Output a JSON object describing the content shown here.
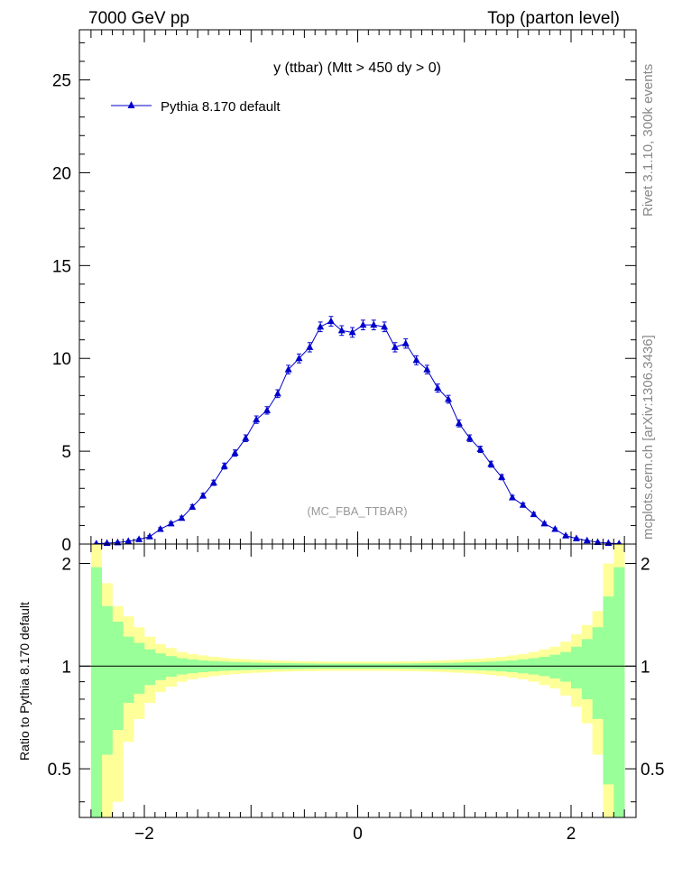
{
  "header": {
    "left": "7000 GeV pp",
    "right": "Top (parton level)"
  },
  "side_labels": {
    "rivet": "Rivet 3.1.10,  300k events",
    "source": "mcplots.cern.ch [arXiv:1306.3436]"
  },
  "colors": {
    "series": "#0000cc",
    "band_inner": "#99ff99",
    "band_outer": "#ffff99",
    "watermark": "#999999"
  },
  "chart_data": [
    {
      "type": "line",
      "title": "y (ttbar) (Mtt > 450 dy > 0)",
      "watermark": "(MC_FBA_TTBAR)",
      "xlim": [
        -2.55,
        2.62
      ],
      "ylim": [
        0,
        27.7
      ],
      "yticks": [
        0,
        5,
        10,
        15,
        20,
        25
      ],
      "ytick_labels": [
        "0",
        "5",
        "10",
        "15",
        "20",
        "25"
      ],
      "legend_position": "top-left",
      "series": [
        {
          "name": "Pythia 8.170 default",
          "marker": "triangle",
          "x": [
            -2.45,
            -2.35,
            -2.25,
            -2.15,
            -2.05,
            -1.95,
            -1.85,
            -1.75,
            -1.65,
            -1.55,
            -1.45,
            -1.35,
            -1.25,
            -1.15,
            -1.05,
            -0.95,
            -0.85,
            -0.75,
            -0.65,
            -0.55,
            -0.45,
            -0.35,
            -0.25,
            -0.15,
            -0.05,
            0.05,
            0.15,
            0.25,
            0.35,
            0.45,
            0.55,
            0.65,
            0.75,
            0.85,
            0.95,
            1.05,
            1.15,
            1.25,
            1.35,
            1.45,
            1.55,
            1.65,
            1.75,
            1.85,
            1.95,
            2.05,
            2.15,
            2.25,
            2.35,
            2.45
          ],
          "y": [
            0.02,
            0.05,
            0.08,
            0.15,
            0.25,
            0.4,
            0.8,
            1.1,
            1.4,
            2.0,
            2.6,
            3.3,
            4.2,
            4.9,
            5.7,
            6.7,
            7.2,
            8.1,
            9.4,
            10.0,
            10.6,
            11.7,
            12.0,
            11.5,
            11.4,
            11.8,
            11.8,
            11.7,
            10.6,
            10.8,
            9.9,
            9.4,
            8.4,
            7.8,
            6.5,
            5.7,
            5.1,
            4.3,
            3.6,
            2.5,
            2.1,
            1.6,
            1.1,
            0.8,
            0.45,
            0.3,
            0.18,
            0.1,
            0.05,
            0.02
          ],
          "yerr": [
            0.02,
            0.02,
            0.03,
            0.04,
            0.05,
            0.06,
            0.08,
            0.09,
            0.1,
            0.12,
            0.13,
            0.14,
            0.16,
            0.17,
            0.18,
            0.2,
            0.2,
            0.21,
            0.23,
            0.24,
            0.25,
            0.26,
            0.26,
            0.26,
            0.26,
            0.26,
            0.26,
            0.26,
            0.25,
            0.25,
            0.24,
            0.23,
            0.22,
            0.21,
            0.19,
            0.18,
            0.17,
            0.16,
            0.14,
            0.12,
            0.11,
            0.1,
            0.08,
            0.07,
            0.05,
            0.04,
            0.03,
            0.03,
            0.02,
            0.02
          ]
        }
      ]
    },
    {
      "type": "area",
      "ylabel": "Ratio to Pythia 8.170 default",
      "xlim": [
        -2.55,
        2.62
      ],
      "ylim": [
        0.36,
        2.28
      ],
      "xticks": [
        -2,
        0,
        2
      ],
      "xtick_labels": [
        "−2",
        "0",
        "2"
      ],
      "yticks": [
        0.5,
        1,
        2
      ],
      "ytick_labels": [
        "0.5",
        "1",
        "2"
      ],
      "reference_line": 1,
      "bins": [
        -2.5,
        -2.4,
        -2.3,
        -2.2,
        -2.1,
        -2.0,
        -1.9,
        -1.8,
        -1.7,
        -1.6,
        -1.5,
        -1.4,
        -1.3,
        -1.2,
        -1.1,
        -1.0,
        -0.9,
        -0.8,
        -0.7,
        -0.6,
        -0.5,
        -0.4,
        -0.3,
        -0.2,
        -0.1,
        0.0,
        0.1,
        0.2,
        0.3,
        0.4,
        0.5,
        0.6,
        0.7,
        0.8,
        0.9,
        1.0,
        1.1,
        1.2,
        1.3,
        1.4,
        1.5,
        1.6,
        1.7,
        1.8,
        1.9,
        2.0,
        2.1,
        2.2,
        2.3,
        2.4,
        2.5
      ],
      "series": [
        {
          "name": "inner band",
          "upper": [
            1.95,
            1.5,
            1.35,
            1.22,
            1.17,
            1.12,
            1.09,
            1.07,
            1.055,
            1.047,
            1.04,
            1.035,
            1.031,
            1.028,
            1.026,
            1.024,
            1.022,
            1.021,
            1.02,
            1.019,
            1.018,
            1.017,
            1.017,
            1.017,
            1.017,
            1.017,
            1.017,
            1.017,
            1.017,
            1.018,
            1.019,
            1.02,
            1.021,
            1.022,
            1.024,
            1.026,
            1.028,
            1.031,
            1.035,
            1.04,
            1.047,
            1.055,
            1.065,
            1.08,
            1.1,
            1.14,
            1.2,
            1.3,
            1.6,
            1.95
          ],
          "lower": [
            0.36,
            0.55,
            0.65,
            0.78,
            0.83,
            0.88,
            0.91,
            0.93,
            0.945,
            0.953,
            0.96,
            0.965,
            0.969,
            0.972,
            0.974,
            0.976,
            0.978,
            0.979,
            0.98,
            0.981,
            0.982,
            0.983,
            0.983,
            0.983,
            0.983,
            0.983,
            0.983,
            0.983,
            0.983,
            0.982,
            0.981,
            0.98,
            0.979,
            0.978,
            0.976,
            0.974,
            0.972,
            0.969,
            0.965,
            0.96,
            0.953,
            0.945,
            0.935,
            0.92,
            0.9,
            0.86,
            0.8,
            0.7,
            0.45,
            0.36
          ]
        },
        {
          "name": "outer band",
          "upper": [
            2.28,
            1.75,
            1.5,
            1.4,
            1.3,
            1.22,
            1.16,
            1.13,
            1.1,
            1.085,
            1.075,
            1.065,
            1.058,
            1.052,
            1.048,
            1.044,
            1.041,
            1.038,
            1.036,
            1.034,
            1.033,
            1.032,
            1.031,
            1.031,
            1.031,
            1.031,
            1.031,
            1.031,
            1.032,
            1.033,
            1.034,
            1.036,
            1.038,
            1.041,
            1.044,
            1.048,
            1.052,
            1.058,
            1.065,
            1.075,
            1.085,
            1.1,
            1.12,
            1.14,
            1.18,
            1.24,
            1.32,
            1.45,
            2.0,
            2.28
          ],
          "lower": [
            0.36,
            0.36,
            0.4,
            0.6,
            0.7,
            0.78,
            0.84,
            0.87,
            0.9,
            0.915,
            0.925,
            0.935,
            0.942,
            0.948,
            0.952,
            0.956,
            0.959,
            0.962,
            0.964,
            0.966,
            0.967,
            0.968,
            0.969,
            0.969,
            0.969,
            0.969,
            0.969,
            0.969,
            0.968,
            0.967,
            0.966,
            0.964,
            0.962,
            0.959,
            0.956,
            0.952,
            0.948,
            0.942,
            0.935,
            0.925,
            0.915,
            0.9,
            0.88,
            0.86,
            0.82,
            0.76,
            0.68,
            0.55,
            0.36,
            0.36
          ]
        }
      ]
    }
  ]
}
